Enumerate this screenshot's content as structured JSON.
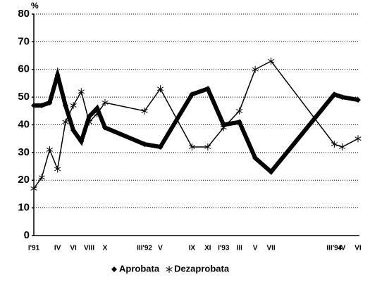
{
  "chart_data": {
    "type": "line",
    "y_label": "%",
    "categories": [
      "I'91",
      null,
      null,
      "IV",
      null,
      "VI",
      null,
      "VIII",
      null,
      "X",
      "III'92",
      "V",
      "IX",
      "XI",
      "I'93",
      "III",
      "V",
      "VII",
      "III'94",
      "IV",
      "VI"
    ],
    "series": [
      {
        "name": "Aprobata",
        "color": "#000000",
        "marker": "diamond",
        "values": [
          47,
          47,
          48,
          58,
          47,
          38,
          34,
          43,
          46,
          39,
          33,
          32,
          51,
          53,
          40,
          41,
          28,
          23,
          51,
          50,
          49
        ]
      },
      {
        "name": "Dezaprobata",
        "color": "#000000",
        "marker": "star",
        "values": [
          17,
          21,
          31,
          24,
          41,
          47,
          52,
          41,
          44,
          48,
          45,
          53,
          32,
          32,
          39,
          45,
          60,
          63,
          33,
          32,
          35
        ]
      }
    ],
    "ylim": [
      0,
      80
    ],
    "yticks": [
      0,
      10,
      20,
      30,
      40,
      50,
      60,
      70,
      80
    ],
    "grid": true,
    "legend": "bottom"
  }
}
